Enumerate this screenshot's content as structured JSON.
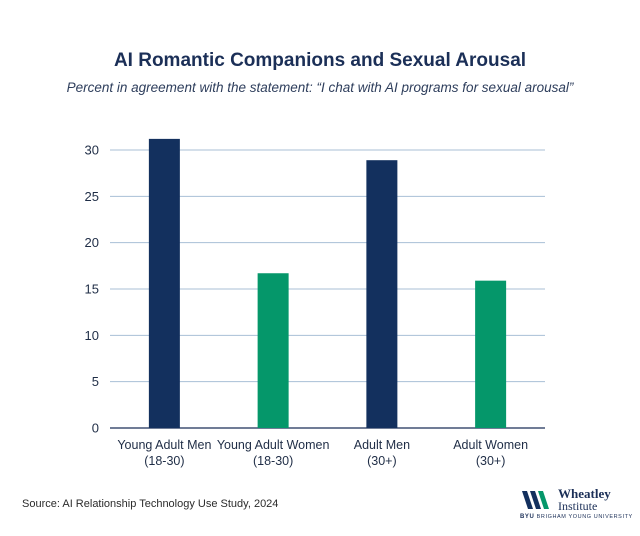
{
  "chart_data": {
    "type": "bar",
    "title": "AI Romantic Companions and Sexual Arousal",
    "subtitle": "Percent in agreement with the statement: “I chat with AI programs for sexual arousal”",
    "categories": [
      [
        "Young Adult Men",
        "(18-30)"
      ],
      [
        "Young Adult Women",
        "(18-30)"
      ],
      [
        "Adult Men",
        "(30+)"
      ],
      [
        "Adult Women",
        "(30+)"
      ]
    ],
    "values": [
      31.2,
      16.7,
      28.9,
      15.9
    ],
    "bar_colors": [
      "#13305e",
      "#05976a",
      "#13305e",
      "#05976a"
    ],
    "ylim": [
      0,
      30
    ],
    "yticks": [
      0,
      5,
      10,
      15,
      20,
      25,
      30
    ],
    "grid": true,
    "xlabel": "",
    "ylabel": ""
  },
  "source": "Source: AI Relationship Technology Use Study, 2024",
  "logo": {
    "name_line1": "Wheatley",
    "name_line2": "Institute",
    "university_prefix": "BYU",
    "university_name": "BRIGHAM YOUNG UNIVERSITY"
  },
  "colors": {
    "navy": "#13305e",
    "green": "#05976a",
    "grid": "#a8bfd6"
  }
}
